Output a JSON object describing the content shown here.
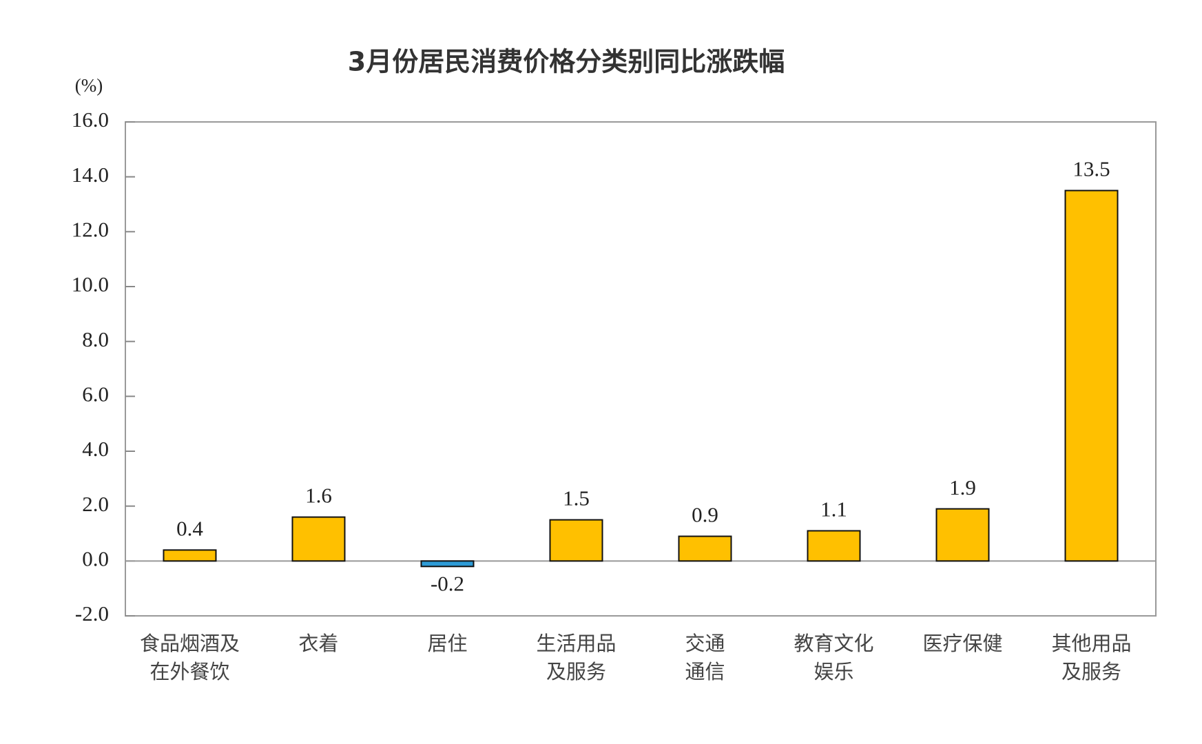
{
  "chart_data": {
    "type": "bar",
    "title": "3月份居民消费价格分类别同比涨跌幅",
    "y_label": "(%)",
    "categories": [
      [
        "食品烟酒及",
        "在外餐饮"
      ],
      [
        "衣着"
      ],
      [
        "居住"
      ],
      [
        "生活用品",
        "及服务"
      ],
      [
        "交通",
        "通信"
      ],
      [
        "教育文化",
        "娱乐"
      ],
      [
        "医疗保健"
      ],
      [
        "其他用品",
        "及服务"
      ]
    ],
    "values": [
      0.4,
      1.6,
      -0.2,
      1.5,
      0.9,
      1.1,
      1.9,
      13.5
    ],
    "colors": [
      "#ffc000",
      "#ffc000",
      "#2e9bd6",
      "#ffc000",
      "#ffc000",
      "#ffc000",
      "#ffc000",
      "#ffc000"
    ],
    "ylim": [
      -2,
      16
    ],
    "yticks": [
      {
        "value": -2,
        "label": "-2.0"
      },
      {
        "value": 0,
        "label": "0.0"
      },
      {
        "value": 2,
        "label": "2.0"
      },
      {
        "value": 4,
        "label": "4.0"
      },
      {
        "value": 6,
        "label": "6.0"
      },
      {
        "value": 8,
        "label": "8.0"
      },
      {
        "value": 10,
        "label": "10.0"
      },
      {
        "value": 12,
        "label": "12.0"
      },
      {
        "value": 14,
        "label": "14.0"
      },
      {
        "value": 16,
        "label": "16.0"
      }
    ]
  }
}
